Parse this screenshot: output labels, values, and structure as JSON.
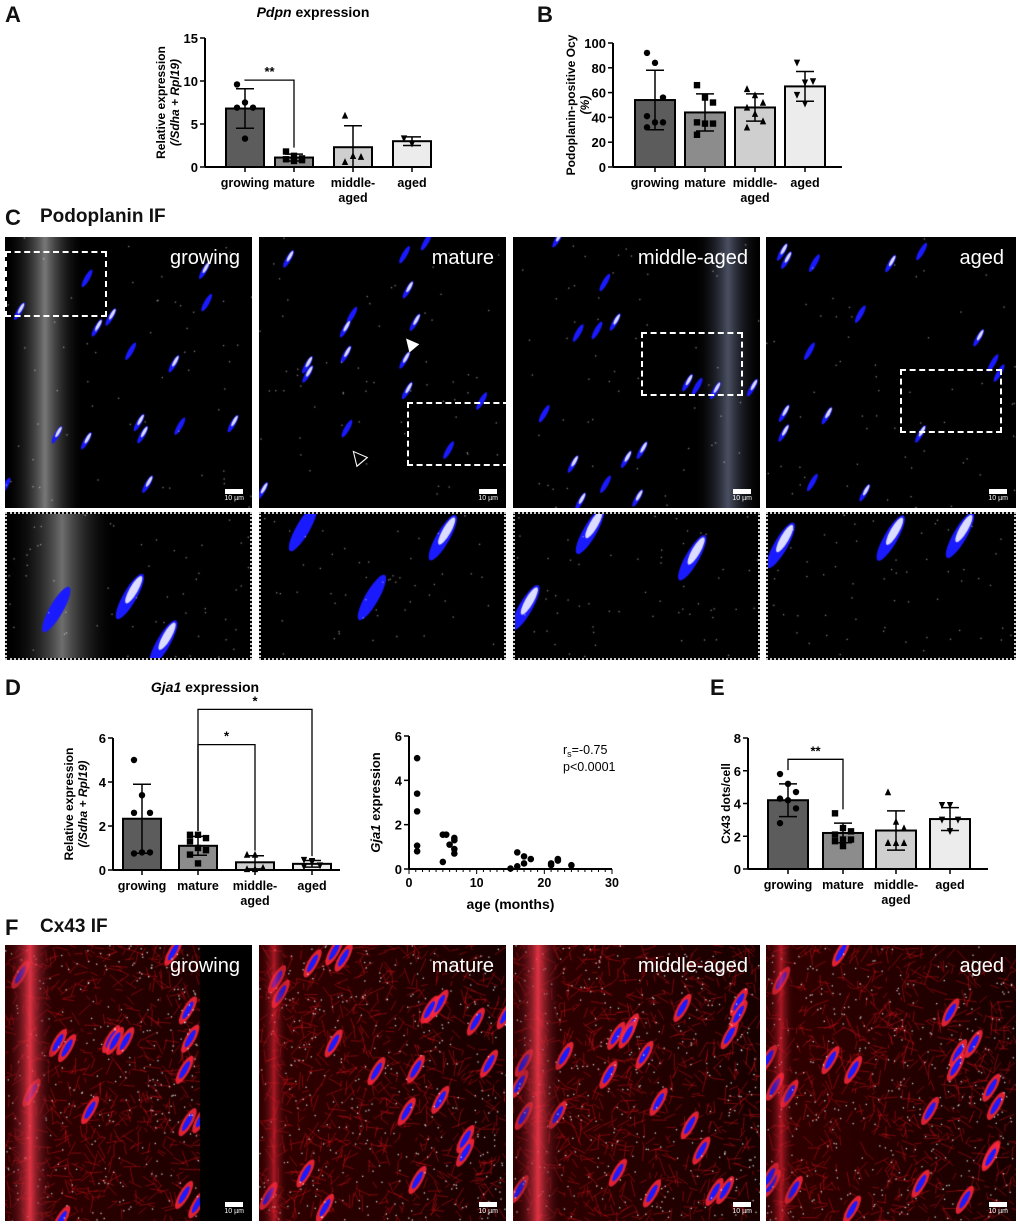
{
  "panel_labels": {
    "A": "A",
    "B": "B",
    "C": "C",
    "D": "D",
    "E": "E",
    "F": "F"
  },
  "panel_c": {
    "title": "Podoplanin IF",
    "groups": [
      "growing",
      "mature",
      "middle-aged",
      "aged"
    ],
    "scale_bar": "10 µm"
  },
  "panel_f": {
    "title": "Cx43 IF",
    "groups": [
      "growing",
      "mature",
      "middle-aged",
      "aged"
    ],
    "scale_bar": "10 µm"
  },
  "colors": {
    "bar_fills": [
      "#5c5c5c",
      "#8c8c8c",
      "#cfcfcf",
      "#ececec"
    ],
    "nucleus": "#1a1aff",
    "cx43": "#e8101a"
  },
  "chart_data": [
    {
      "id": "A",
      "type": "bar",
      "title_italic": "Pdpn",
      "title_rest": " expression",
      "ylabel": [
        "Relative expression",
        "(/Sdha + Rpl19)"
      ],
      "ylim": [
        0,
        15
      ],
      "yticks": [
        0,
        5,
        10,
        15
      ],
      "categories": [
        "growing",
        "mature",
        "middle-aged",
        "aged"
      ],
      "markers": [
        "circle",
        "square",
        "triangle-up",
        "triangle-down"
      ],
      "means": [
        6.8,
        1.1,
        2.3,
        3.0
      ],
      "sd": [
        2.3,
        0.4,
        2.5,
        0.5
      ],
      "points": [
        [
          9.6,
          7.5,
          6.9,
          6.9,
          3.3
        ],
        [
          1.8,
          1.3,
          1.0,
          0.9,
          0.7,
          0.8
        ],
        [
          6.0,
          1.3,
          1.2,
          0.6
        ],
        [
          3.3,
          2.7
        ]
      ],
      "significance": [
        {
          "from": 0,
          "to": 1,
          "level": 10.1,
          "label": "**"
        }
      ]
    },
    {
      "id": "B",
      "type": "bar",
      "title_italic": "",
      "title_rest": "",
      "ylabel": [
        "Podoplanin-positive Ocy",
        "(%)"
      ],
      "ylim": [
        0,
        100
      ],
      "yticks": [
        0,
        20,
        40,
        60,
        80,
        100
      ],
      "categories": [
        "growing",
        "mature",
        "middle-aged",
        "aged"
      ],
      "markers": [
        "circle",
        "square",
        "triangle-up",
        "triangle-down"
      ],
      "means": [
        54,
        44,
        48,
        65
      ],
      "sd": [
        24,
        15,
        11,
        12
      ],
      "points": [
        [
          92,
          84,
          56,
          41,
          36,
          36,
          32
        ],
        [
          66,
          56,
          52,
          36,
          35,
          35,
          26
        ],
        [
          63,
          58,
          52,
          48,
          43,
          37,
          32
        ],
        [
          84,
          68,
          69,
          58,
          51
        ]
      ],
      "significance": []
    },
    {
      "id": "D1",
      "type": "bar",
      "title_italic": "Gja1",
      "title_rest": " expression",
      "ylabel": [
        "Relative expression",
        "(/Sdha + Rpl19)"
      ],
      "ylim": [
        0,
        6
      ],
      "yticks": [
        0,
        2,
        4,
        6
      ],
      "categories": [
        "growing",
        "mature",
        "middle-aged",
        "aged"
      ],
      "markers": [
        "circle",
        "square",
        "triangle-up",
        "triangle-down"
      ],
      "means": [
        2.33,
        1.1,
        0.35,
        0.28
      ],
      "sd": [
        1.57,
        0.43,
        0.3,
        0.15
      ],
      "points": [
        [
          5.0,
          3.4,
          2.6,
          2.6,
          0.8,
          0.8,
          0.75
        ],
        [
          1.6,
          1.6,
          1.45,
          1.3,
          1.0,
          0.9,
          0.7,
          0.3
        ],
        [
          0.7,
          0.7,
          0.1,
          0.05,
          0.05,
          0.1
        ],
        [
          0.45,
          0.4,
          0.2,
          0.15,
          0.35
        ]
      ],
      "significance": [
        {
          "from": 1,
          "to": 2,
          "level": 5.7,
          "label": "*"
        },
        {
          "from": 1,
          "to": 3,
          "level": 7.3,
          "label": "*"
        }
      ]
    },
    {
      "id": "D2",
      "type": "scatter",
      "xlabel": "age (months)",
      "ylabel_italic": "Gja1",
      "ylabel_rest": " expression",
      "xlim": [
        0,
        30
      ],
      "ylim": [
        0,
        6
      ],
      "xticks": [
        0,
        10,
        20,
        30
      ],
      "yticks": [
        0,
        2,
        4,
        6
      ],
      "annotation": {
        "r_label": "r",
        "r_sub": "s",
        "r_value": "=-0.75",
        "p": "p<0.0001"
      },
      "points": [
        [
          1.2,
          5.0
        ],
        [
          1.2,
          3.4
        ],
        [
          1.2,
          2.6
        ],
        [
          1.2,
          1.05
        ],
        [
          1.2,
          0.8
        ],
        [
          5,
          1.55
        ],
        [
          5.5,
          1.55
        ],
        [
          5,
          0.32
        ],
        [
          6,
          1.1
        ],
        [
          6.7,
          1.4
        ],
        [
          6.7,
          1.3
        ],
        [
          6.7,
          0.9
        ],
        [
          6.7,
          0.7
        ],
        [
          15,
          0.02
        ],
        [
          16,
          0.75
        ],
        [
          16,
          0.12
        ],
        [
          17,
          0.57
        ],
        [
          17,
          0.25
        ],
        [
          18,
          0.45
        ],
        [
          21,
          0.25
        ],
        [
          21,
          0.18
        ],
        [
          22,
          0.45
        ],
        [
          22,
          0.38
        ],
        [
          24,
          0.17
        ]
      ]
    },
    {
      "id": "E",
      "type": "bar",
      "title_italic": "",
      "title_rest": "",
      "ylabel": [
        "Cx43 dots/cell"
      ],
      "ylim": [
        0,
        8
      ],
      "yticks": [
        0,
        2,
        4,
        6,
        8
      ],
      "categories": [
        "growing",
        "mature",
        "middle-aged",
        "aged"
      ],
      "markers": [
        "circle",
        "square",
        "triangle-up",
        "triangle-down"
      ],
      "means": [
        4.2,
        2.2,
        2.35,
        3.05
      ],
      "sd": [
        1.0,
        0.6,
        1.2,
        0.7
      ],
      "points": [
        [
          5.8,
          5.2,
          4.7,
          4.3,
          4.2,
          3.7,
          2.8
        ],
        [
          3.4,
          2.5,
          2.3,
          2.1,
          1.8,
          1.8,
          1.7,
          1.4
        ],
        [
          4.7,
          2.9,
          2.5,
          1.6,
          1.6,
          1.6,
          1.6
        ],
        [
          3.9,
          3.9,
          3.0,
          3.0,
          2.3
        ]
      ],
      "significance": [
        {
          "from": 0,
          "to": 1,
          "level": 6.7,
          "label": "**"
        }
      ]
    }
  ]
}
